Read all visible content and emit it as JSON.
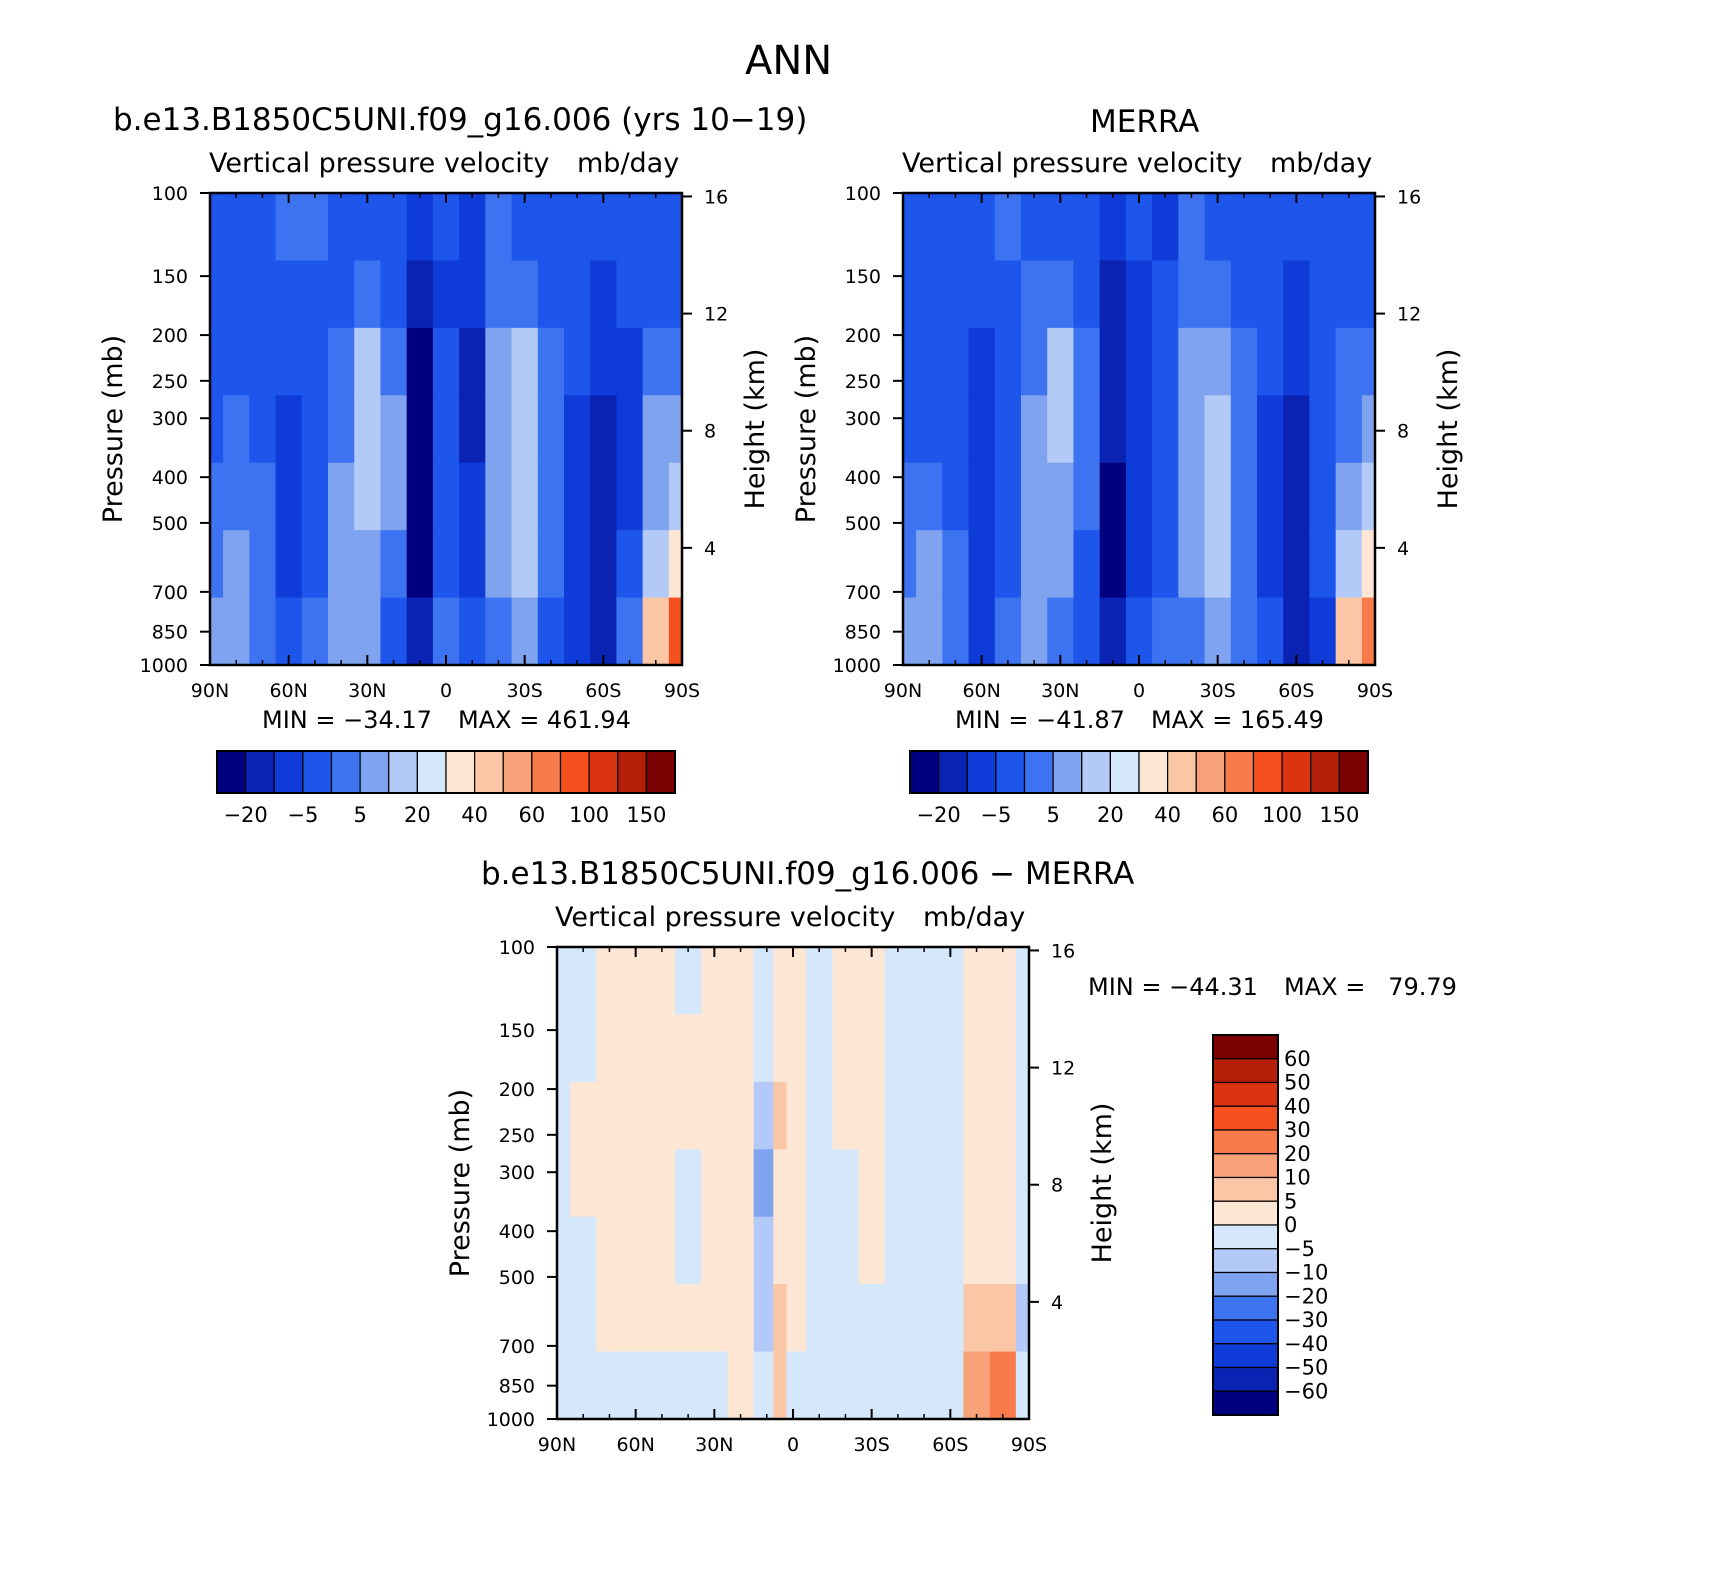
{
  "figure": {
    "title": "ANN"
  },
  "colors": {
    "abs_fills": [
      "#000080",
      "#0a23b2",
      "#0f3bd8",
      "#1e56ec",
      "#3d73f0",
      "#7fa3ef",
      "#b3c9f7",
      "#d5e7fa",
      "#fde6d4",
      "#fbc6a6",
      "#f8a27a",
      "#f87b4b",
      "#f5501d",
      "#db3412",
      "#b41f0a",
      "#7b0000"
    ],
    "diff_fills": [
      "#000080",
      "#0a23b2",
      "#0f3bd8",
      "#1e56ec",
      "#3d73f0",
      "#7fa3ef",
      "#b3c9f7",
      "#d5e7fa",
      "#fde6d4",
      "#fbc6a6",
      "#f8a27a",
      "#f87b4b",
      "#f5501d",
      "#db3412",
      "#b41f0a",
      "#7b0000"
    ]
  },
  "chart_data": [
    {
      "type": "heatmap",
      "id": "model",
      "title": "b.e13.B1850C5UNI.f09_g16.006 (yrs 10−19)",
      "subtitle_left": "Vertical pressure velocity",
      "subtitle_right": "mb/day",
      "ylabel": "Pressure (mb)",
      "y2label": "Height (km)",
      "xticks": [
        "90N",
        "60N",
        "30N",
        "0",
        "30S",
        "60S",
        "90S"
      ],
      "xlim": [
        90,
        -90
      ],
      "yticks": [
        100,
        150,
        200,
        250,
        300,
        400,
        500,
        700,
        850,
        1000
      ],
      "ylim": [
        1000,
        100
      ],
      "y2ticks": [
        16,
        12,
        8,
        4
      ],
      "min_label": "MIN = −34.17",
      "max_label": "MAX = 461.94",
      "min": -34.17,
      "max": 461.94,
      "colorbar_levels": [
        -20,
        -5,
        5,
        20,
        40,
        60,
        100,
        150
      ],
      "colorbar_labels": [
        "−20",
        "−5",
        "5",
        "20",
        "40",
        "60",
        "100",
        "150"
      ],
      "bands": [
        {
          "lat": 90,
          "levels": [
            3,
            3,
            3,
            3,
            4,
            4,
            5
          ]
        },
        {
          "lat": 80,
          "levels": [
            3,
            3,
            3,
            4,
            4,
            5,
            5
          ]
        },
        {
          "lat": 70,
          "levels": [
            3,
            3,
            3,
            3,
            4,
            4,
            4
          ]
        },
        {
          "lat": 60,
          "levels": [
            4,
            3,
            3,
            2,
            2,
            2,
            3
          ]
        },
        {
          "lat": 50,
          "levels": [
            4,
            3,
            3,
            3,
            3,
            3,
            4
          ]
        },
        {
          "lat": 40,
          "levels": [
            3,
            3,
            4,
            4,
            5,
            5,
            5
          ]
        },
        {
          "lat": 30,
          "levels": [
            3,
            4,
            6,
            6,
            6,
            5,
            5
          ]
        },
        {
          "lat": 20,
          "levels": [
            3,
            3,
            4,
            5,
            5,
            4,
            3
          ]
        },
        {
          "lat": 10,
          "levels": [
            2,
            1,
            0,
            0,
            0,
            0,
            1
          ]
        },
        {
          "lat": 0,
          "levels": [
            3,
            2,
            3,
            3,
            3,
            3,
            4
          ]
        },
        {
          "lat": -10,
          "levels": [
            2,
            2,
            1,
            1,
            2,
            2,
            3
          ]
        },
        {
          "lat": -20,
          "levels": [
            4,
            4,
            5,
            5,
            5,
            5,
            4
          ]
        },
        {
          "lat": -30,
          "levels": [
            3,
            4,
            6,
            6,
            6,
            6,
            5
          ]
        },
        {
          "lat": -40,
          "levels": [
            3,
            3,
            4,
            4,
            4,
            4,
            3
          ]
        },
        {
          "lat": -50,
          "levels": [
            3,
            3,
            3,
            2,
            2,
            2,
            2
          ]
        },
        {
          "lat": -60,
          "levels": [
            3,
            2,
            2,
            1,
            1,
            1,
            1
          ]
        },
        {
          "lat": -70,
          "levels": [
            3,
            3,
            2,
            2,
            2,
            3,
            4
          ]
        },
        {
          "lat": -80,
          "levels": [
            3,
            3,
            4,
            5,
            5,
            6,
            9
          ]
        },
        {
          "lat": -90,
          "levels": [
            3,
            3,
            4,
            5,
            6,
            8,
            12
          ]
        }
      ]
    },
    {
      "type": "heatmap",
      "id": "obs",
      "title": "MERRA",
      "subtitle_left": "Vertical pressure velocity",
      "subtitle_right": "mb/day",
      "ylabel": "Pressure (mb)",
      "y2label": "Height (km)",
      "xticks": [
        "90N",
        "60N",
        "30N",
        "0",
        "30S",
        "60S",
        "90S"
      ],
      "xlim": [
        90,
        -90
      ],
      "yticks": [
        100,
        150,
        200,
        250,
        300,
        400,
        500,
        700,
        850,
        1000
      ],
      "ylim": [
        1000,
        100
      ],
      "y2ticks": [
        16,
        12,
        8,
        4
      ],
      "min_label": "MIN = −41.87",
      "max_label": "MAX = 165.49",
      "min": -41.87,
      "max": 165.49,
      "colorbar_levels": [
        -20,
        -5,
        5,
        20,
        40,
        60,
        100,
        150
      ],
      "colorbar_labels": [
        "−20",
        "−5",
        "5",
        "20",
        "40",
        "60",
        "100",
        "150"
      ],
      "bands": [
        {
          "lat": 90,
          "levels": [
            3,
            3,
            3,
            3,
            4,
            4,
            5
          ]
        },
        {
          "lat": 80,
          "levels": [
            3,
            3,
            3,
            3,
            4,
            5,
            5
          ]
        },
        {
          "lat": 70,
          "levels": [
            3,
            3,
            3,
            3,
            3,
            4,
            4
          ]
        },
        {
          "lat": 60,
          "levels": [
            3,
            3,
            2,
            2,
            2,
            2,
            2
          ]
        },
        {
          "lat": 50,
          "levels": [
            4,
            3,
            3,
            3,
            3,
            3,
            4
          ]
        },
        {
          "lat": 40,
          "levels": [
            3,
            4,
            4,
            5,
            5,
            5,
            5
          ]
        },
        {
          "lat": 30,
          "levels": [
            3,
            4,
            6,
            6,
            5,
            5,
            4
          ]
        },
        {
          "lat": 20,
          "levels": [
            3,
            3,
            4,
            4,
            4,
            3,
            3
          ]
        },
        {
          "lat": 10,
          "levels": [
            2,
            1,
            1,
            1,
            0,
            0,
            1
          ]
        },
        {
          "lat": 0,
          "levels": [
            3,
            2,
            2,
            2,
            2,
            2,
            3
          ]
        },
        {
          "lat": -10,
          "levels": [
            2,
            3,
            3,
            3,
            3,
            3,
            4
          ]
        },
        {
          "lat": -20,
          "levels": [
            4,
            4,
            5,
            5,
            5,
            5,
            4
          ]
        },
        {
          "lat": -30,
          "levels": [
            3,
            4,
            5,
            6,
            6,
            6,
            5
          ]
        },
        {
          "lat": -40,
          "levels": [
            3,
            3,
            4,
            4,
            4,
            4,
            4
          ]
        },
        {
          "lat": -50,
          "levels": [
            3,
            3,
            3,
            2,
            2,
            2,
            3
          ]
        },
        {
          "lat": -60,
          "levels": [
            3,
            2,
            2,
            1,
            1,
            1,
            1
          ]
        },
        {
          "lat": -70,
          "levels": [
            3,
            3,
            3,
            3,
            3,
            3,
            2
          ]
        },
        {
          "lat": -80,
          "levels": [
            3,
            3,
            4,
            4,
            5,
            6,
            9
          ]
        },
        {
          "lat": -90,
          "levels": [
            3,
            3,
            4,
            5,
            6,
            8,
            11
          ]
        }
      ]
    },
    {
      "type": "heatmap",
      "id": "diff",
      "title": "b.e13.B1850C5UNI.f09_g16.006 − MERRA",
      "subtitle_left": "Vertical pressure velocity",
      "subtitle_right": "mb/day",
      "ylabel": "Pressure (mb)",
      "y2label": "Height (km)",
      "xticks": [
        "90N",
        "60N",
        "30N",
        "0",
        "30S",
        "60S",
        "90S"
      ],
      "xlim": [
        90,
        -90
      ],
      "yticks": [
        100,
        150,
        200,
        250,
        300,
        400,
        500,
        700,
        850,
        1000
      ],
      "ylim": [
        1000,
        100
      ],
      "y2ticks": [
        16,
        12,
        8,
        4
      ],
      "min_label": "MIN = −44.31",
      "max_label": "MAX =   79.79",
      "min": -44.31,
      "max": 79.79,
      "colorbar_levels": [
        60,
        50,
        40,
        30,
        20,
        10,
        5,
        0,
        -5,
        -10,
        -20,
        -30,
        -40,
        -50,
        -60
      ],
      "colorbar_labels": [
        "60",
        "50",
        "40",
        "30",
        "20",
        "10",
        "5",
        "0",
        "−5",
        "−10",
        "−20",
        "−30",
        "−40",
        "−50",
        "−60"
      ],
      "bands": [
        {
          "lat": 90,
          "levels": [
            7,
            7,
            7,
            7,
            7,
            7,
            7
          ]
        },
        {
          "lat": 80,
          "levels": [
            7,
            7,
            8,
            8,
            7,
            7,
            7
          ]
        },
        {
          "lat": 70,
          "levels": [
            8,
            8,
            8,
            8,
            8,
            8,
            7
          ]
        },
        {
          "lat": 60,
          "levels": [
            8,
            8,
            8,
            8,
            8,
            8,
            7
          ]
        },
        {
          "lat": 50,
          "levels": [
            8,
            8,
            8,
            8,
            8,
            8,
            7
          ]
        },
        {
          "lat": 40,
          "levels": [
            7,
            8,
            8,
            7,
            7,
            8,
            7
          ]
        },
        {
          "lat": 30,
          "levels": [
            8,
            8,
            8,
            8,
            8,
            8,
            7
          ]
        },
        {
          "lat": 20,
          "levels": [
            8,
            8,
            8,
            8,
            8,
            8,
            8
          ]
        },
        {
          "lat": 10,
          "levels": [
            7,
            7,
            6,
            5,
            6,
            6,
            7
          ]
        },
        {
          "lat": 5,
          "levels": [
            8,
            8,
            9,
            8,
            8,
            9,
            9
          ]
        },
        {
          "lat": 0,
          "levels": [
            8,
            8,
            8,
            8,
            8,
            8,
            7
          ]
        },
        {
          "lat": -10,
          "levels": [
            7,
            7,
            7,
            7,
            7,
            7,
            7
          ]
        },
        {
          "lat": -20,
          "levels": [
            8,
            8,
            8,
            7,
            7,
            7,
            7
          ]
        },
        {
          "lat": -30,
          "levels": [
            8,
            8,
            8,
            8,
            8,
            7,
            7
          ]
        },
        {
          "lat": -40,
          "levels": [
            7,
            7,
            7,
            7,
            7,
            7,
            7
          ]
        },
        {
          "lat": -50,
          "levels": [
            7,
            7,
            7,
            7,
            7,
            7,
            7
          ]
        },
        {
          "lat": -60,
          "levels": [
            7,
            7,
            7,
            7,
            7,
            7,
            7
          ]
        },
        {
          "lat": -70,
          "levels": [
            8,
            8,
            8,
            8,
            8,
            9,
            10
          ]
        },
        {
          "lat": -80,
          "levels": [
            8,
            8,
            8,
            8,
            8,
            9,
            11
          ]
        },
        {
          "lat": -90,
          "levels": [
            7,
            7,
            7,
            7,
            7,
            6,
            7
          ]
        }
      ]
    }
  ]
}
